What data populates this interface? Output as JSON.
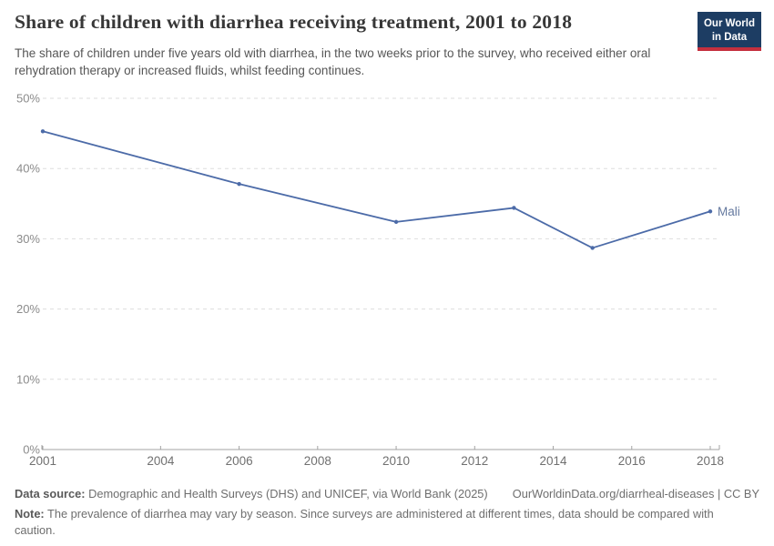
{
  "header": {
    "title": "Share of children with diarrhea receiving treatment, 2001 to 2018",
    "subtitle": "The share of children under five years old with diarrhea, in the two weeks prior to the survey, who received either oral rehydration therapy or increased fluids, whilst feeding continues.",
    "logo": {
      "line1": "Our World",
      "line2": "in Data",
      "bg_color": "#1d3d63",
      "accent_color": "#c5303e"
    }
  },
  "chart_data": {
    "type": "line",
    "title": "Share of children with diarrhea receiving treatment, 2001 to 2018",
    "xlabel": "",
    "ylabel": "",
    "xlim": [
      2001,
      2018
    ],
    "ylim": [
      0,
      50
    ],
    "grid": "horizontal-dashed",
    "legend_position": "end-of-line",
    "x_ticks": [
      2001,
      2004,
      2006,
      2008,
      2010,
      2012,
      2014,
      2016,
      2018
    ],
    "y_ticks": [
      0,
      10,
      20,
      30,
      40,
      50
    ],
    "y_tick_suffix": "%",
    "colors": {
      "gridline": "#dedede",
      "axis": "#a3a3a3",
      "y_tick_label": "#8b8b8b",
      "x_tick_label": "#707070"
    },
    "series": [
      {
        "name": "Mali",
        "color": "#4c6ba8",
        "label_color": "#65799f",
        "points": [
          {
            "x": 2001,
            "y": 45.3
          },
          {
            "x": 2006,
            "y": 37.8
          },
          {
            "x": 2010,
            "y": 32.4
          },
          {
            "x": 2013,
            "y": 34.4
          },
          {
            "x": 2015,
            "y": 28.7
          },
          {
            "x": 2018,
            "y": 33.9
          }
        ]
      }
    ]
  },
  "footer": {
    "data_source_label": "Data source:",
    "data_source_text": "Demographic and Health Surveys (DHS) and UNICEF, via World Bank (2025)",
    "attribution": "OurWorldinData.org/diarrheal-diseases | CC BY",
    "note_label": "Note:",
    "note_text": "The prevalence of diarrhea may vary by season. Since surveys are administered at different times, data should be compared with caution."
  }
}
